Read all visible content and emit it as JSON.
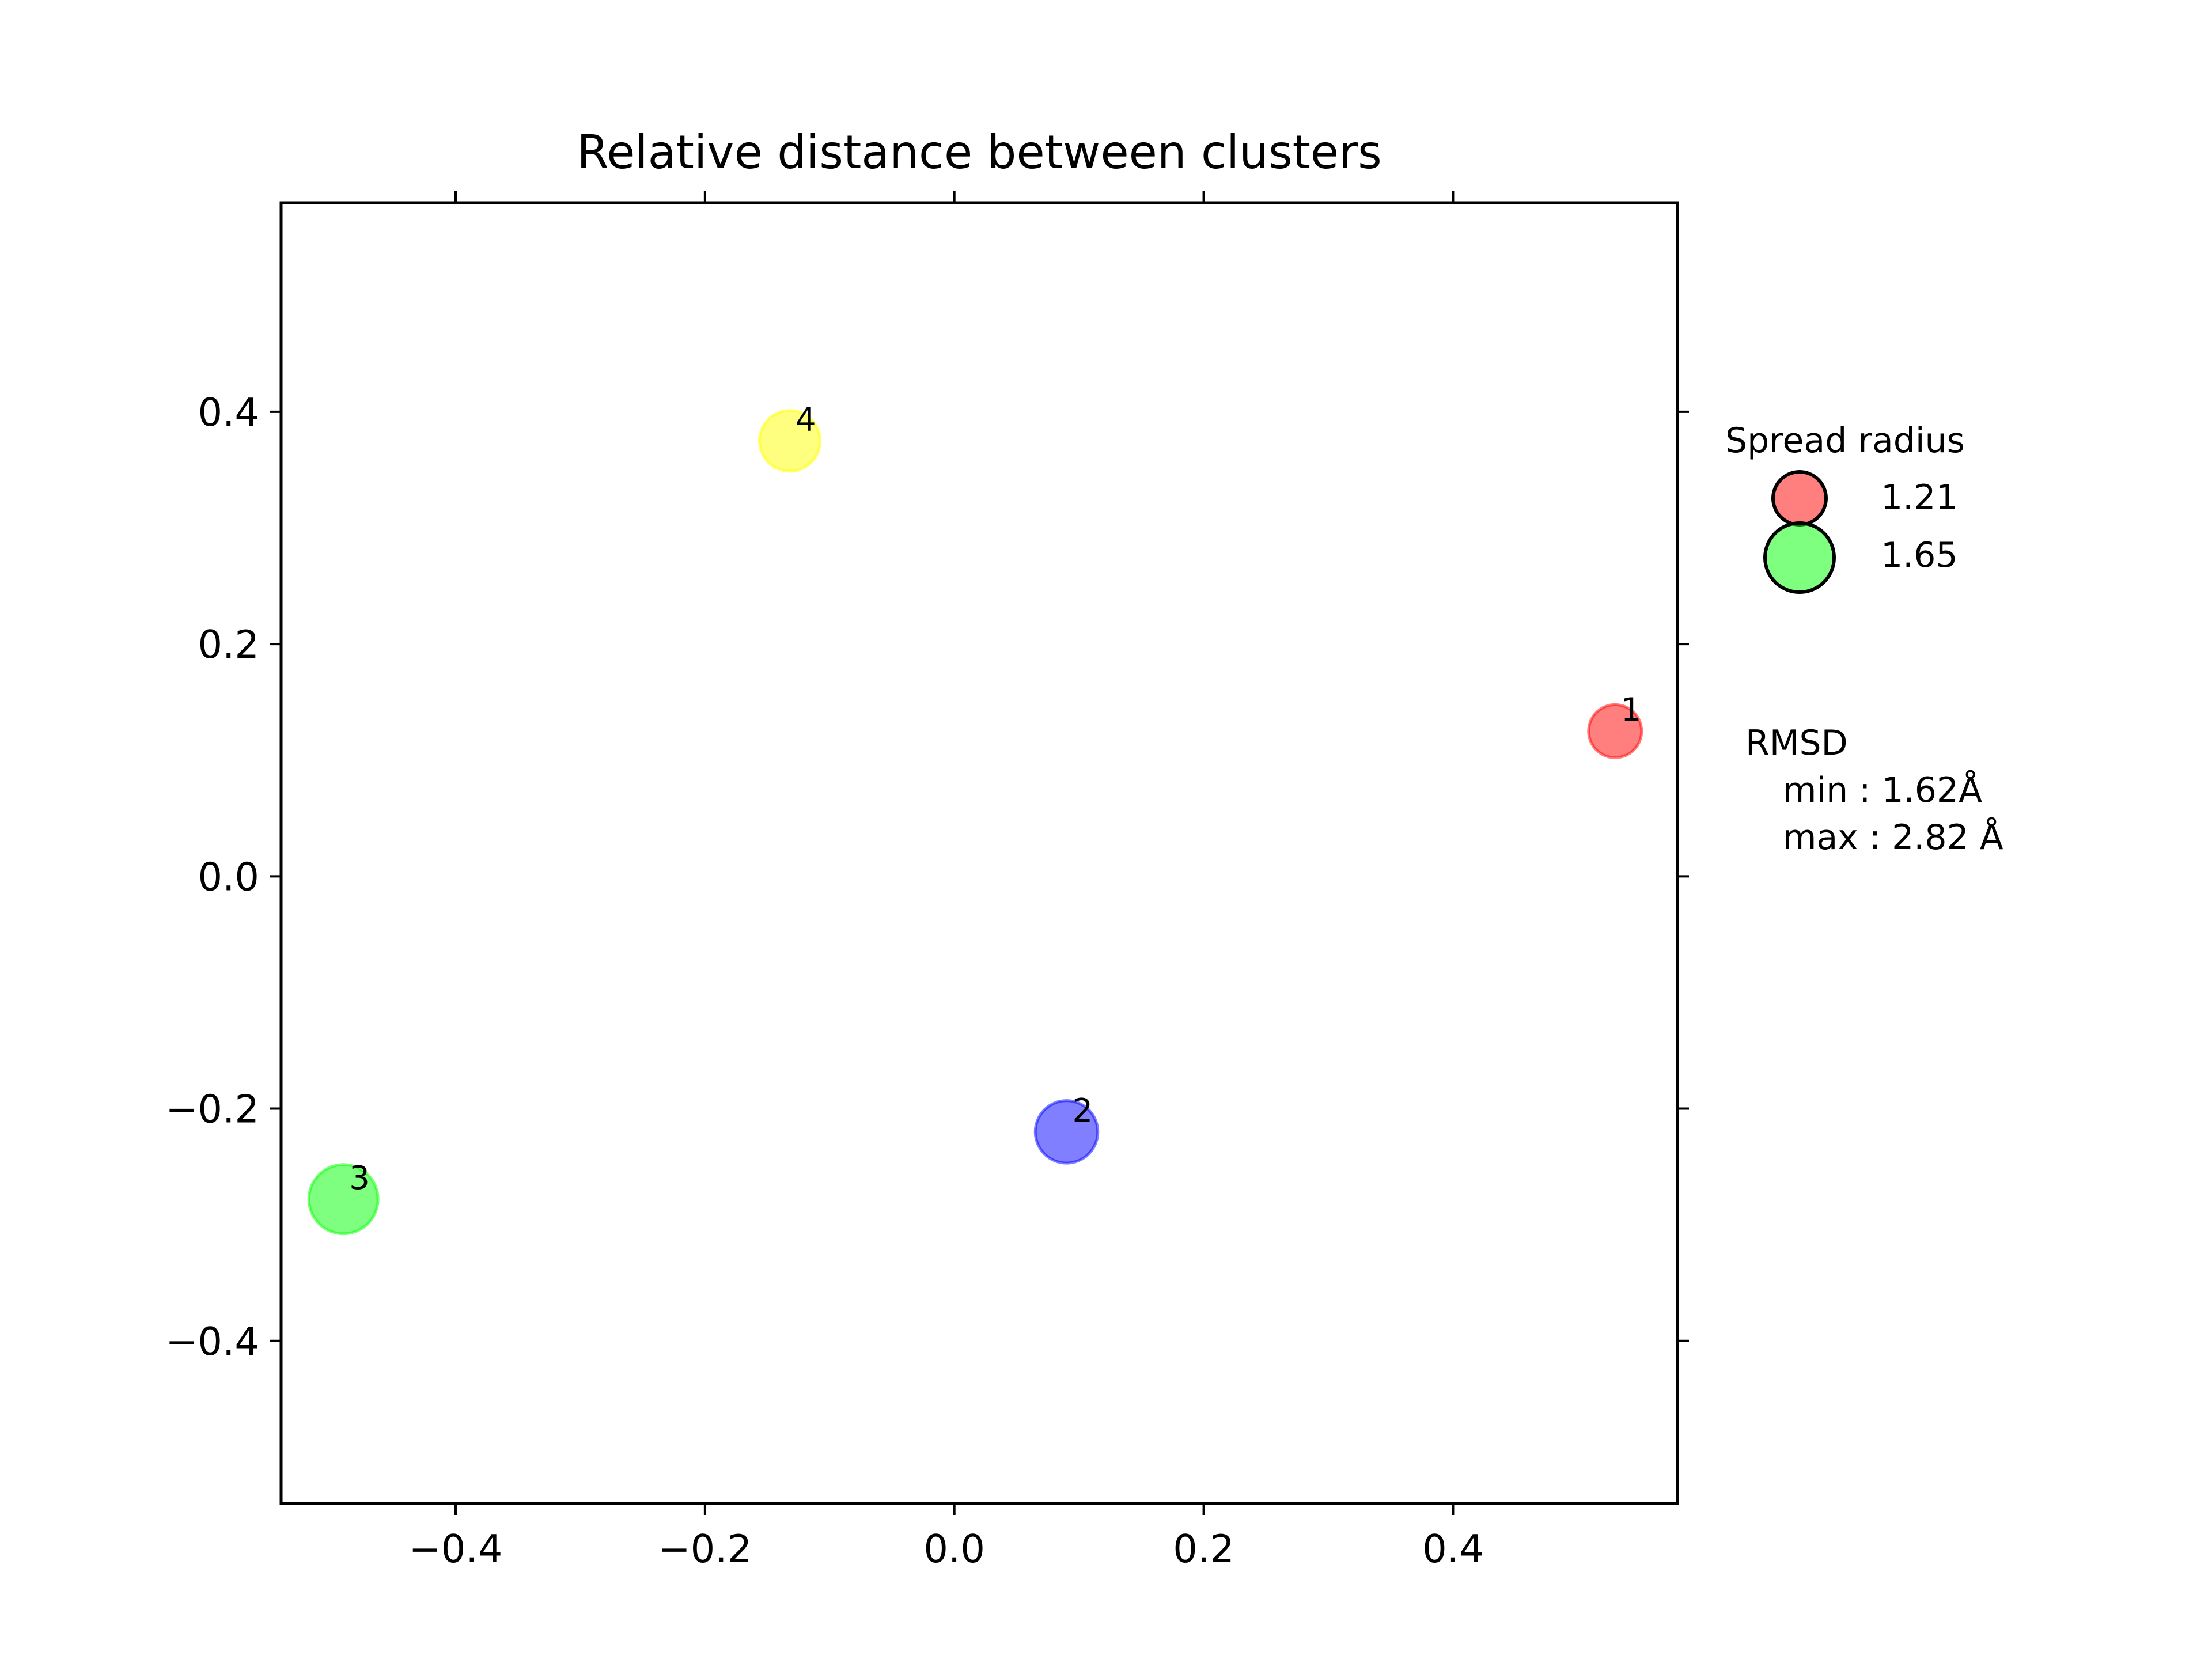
{
  "chart_data": {
    "type": "scatter",
    "title": "Relative distance between clusters",
    "xlabel": "",
    "ylabel": "",
    "xlim": [
      -0.54,
      0.58
    ],
    "ylim": [
      -0.54,
      0.58
    ],
    "xticks": [
      "−0.4",
      "−0.2",
      "0.0",
      "0.2",
      "0.4"
    ],
    "yticks": [
      "−0.4",
      "−0.2",
      "0.0",
      "0.2",
      "0.4"
    ],
    "xtick_values": [
      -0.4,
      -0.2,
      0.0,
      0.2,
      0.4
    ],
    "ytick_values": [
      -0.4,
      -0.2,
      0.0,
      0.2,
      0.4
    ],
    "grid": false,
    "points": [
      {
        "label": "1",
        "x": 0.53,
        "y": 0.125,
        "spread": 1.21,
        "color": "#ff0000"
      },
      {
        "label": "2",
        "x": 0.09,
        "y": -0.22,
        "spread": 1.47,
        "color": "#0000ff"
      },
      {
        "label": "3",
        "x": -0.49,
        "y": -0.278,
        "spread": 1.65,
        "color": "#00ff00"
      },
      {
        "label": "4",
        "x": -0.132,
        "y": 0.375,
        "spread": 1.42,
        "color": "#ffff00"
      }
    ],
    "legend": {
      "title": "Spread radius",
      "placement": "right",
      "entries": [
        {
          "label": "1.21",
          "spread": 1.21,
          "color": "#ff0000"
        },
        {
          "label": "1.65",
          "spread": 1.65,
          "color": "#00ff00"
        }
      ]
    },
    "annotation": {
      "heading": "RMSD",
      "min_line": "min : 1.62Å",
      "max_line": "max : 2.82 Å"
    }
  }
}
